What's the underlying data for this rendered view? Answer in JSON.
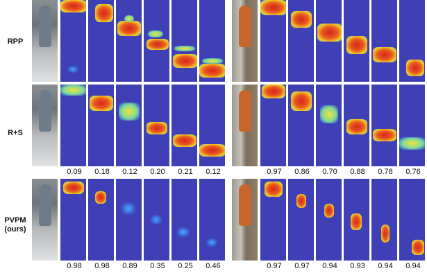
{
  "rows": [
    {
      "label": "RPP",
      "left_scores": [],
      "right_scores": []
    },
    {
      "label": "R+S",
      "left_scores": [
        "0.09",
        "0.18",
        "0.12",
        "0.20",
        "0.21",
        "0.12"
      ],
      "right_scores": [
        "0.97",
        "0.86",
        "0.70",
        "0.88",
        "0.78",
        "0.76"
      ]
    },
    {
      "label": "PVPM\n(ours)",
      "left_scores": [
        "0.98",
        "0.98",
        "0.89",
        "0.35",
        "0.25",
        "0.46"
      ],
      "right_scores": [
        "0.97",
        "0.97",
        "0.94",
        "0.93",
        "0.94",
        "0.94"
      ]
    }
  ],
  "colors": {
    "heat_background": "#2f2fb0",
    "hot": "#d7261e",
    "warm": "#f3e23a",
    "cool": "#4aa8ff"
  }
}
